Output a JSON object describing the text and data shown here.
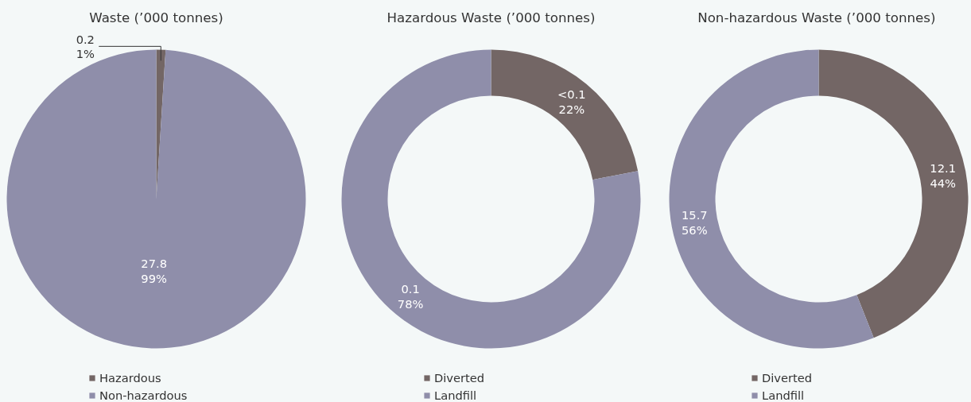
{
  "chart_data": [
    {
      "type": "pie",
      "title": "Waste (’000 tonnes)",
      "categories": [
        "Hazardous",
        "Non-hazardous"
      ],
      "values": [
        1,
        99
      ],
      "colors": [
        "#736665",
        "#8f8eaa"
      ],
      "value_labels": [
        "0.2\n1%",
        "27.8\n99%"
      ],
      "legend": "bottom"
    },
    {
      "type": "donut",
      "title": "Hazardous Waste (’000 tonnes)",
      "categories": [
        "Diverted",
        "Landfill"
      ],
      "values": [
        22,
        78
      ],
      "colors": [
        "#736665",
        "#8f8eaa"
      ],
      "value_labels": [
        "<0.1\n22%",
        "0.1\n78%"
      ],
      "legend": "bottom"
    },
    {
      "type": "donut",
      "title": "Non-hazardous Waste  (’000 tonnes)",
      "categories": [
        "Diverted",
        "Landfill"
      ],
      "values": [
        44,
        56
      ],
      "colors": [
        "#736665",
        "#8f8eaa"
      ],
      "value_labels": [
        "12.1\n44%",
        "15.7\n56%"
      ],
      "legend": "bottom"
    }
  ]
}
